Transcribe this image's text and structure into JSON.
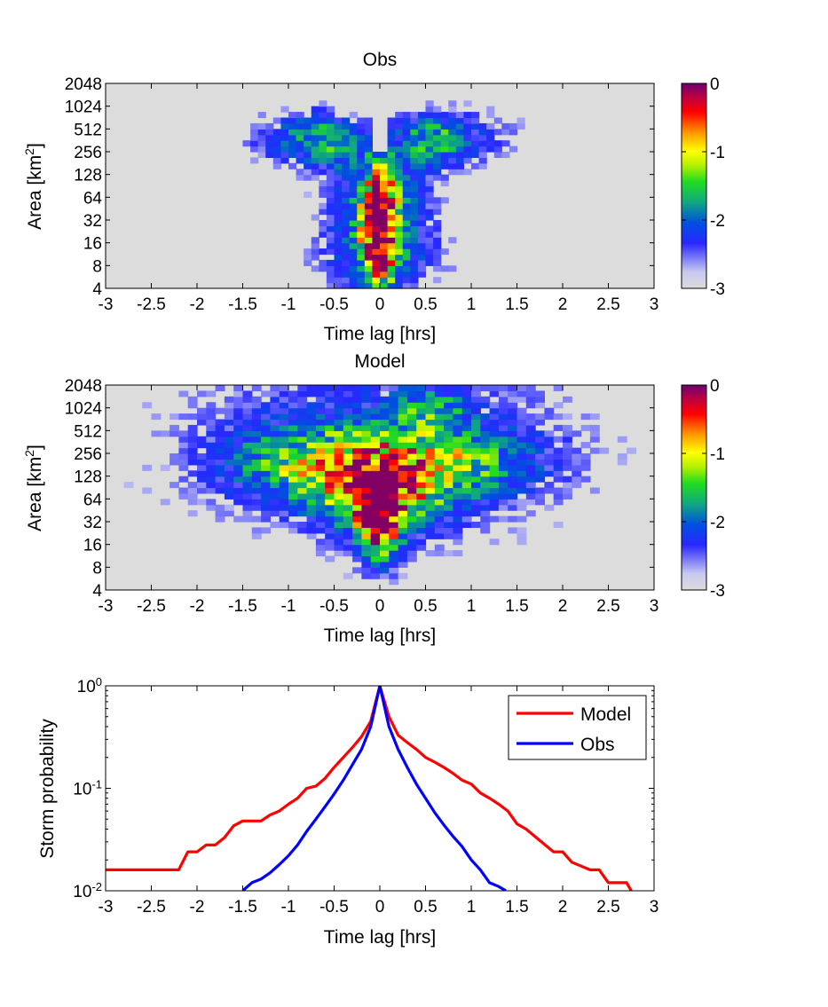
{
  "chart_data": [
    {
      "type": "heatmap",
      "title": "Obs",
      "xlabel": "Time lag [hrs]",
      "ylabel_main": "Area [km",
      "ylabel_sup": "2",
      "ylabel_tail": "]",
      "xlim": [
        -3,
        3
      ],
      "x_ticks": [
        "-3",
        "-2.5",
        "-2",
        "-1.5",
        "-1",
        "-0.5",
        "0",
        "0.5",
        "1",
        "1.5",
        "2",
        "2.5",
        "3"
      ],
      "y_ticks": [
        "4",
        "8",
        "16",
        "32",
        "64",
        "128",
        "256",
        "512",
        "1024",
        "2048"
      ],
      "y_ticks_log2": [
        2,
        3,
        4,
        5,
        6,
        7,
        8,
        9,
        10,
        11
      ],
      "colorbar": {
        "range": [
          -3,
          0
        ],
        "ticks": [
          "0",
          "-1",
          "-2",
          "-3"
        ],
        "colormap": "spectral (light gray at -3, blue, green, yellow, red, dark purple at 0)"
      },
      "background_value": -3,
      "cell_width_hrs": 0.0833,
      "blobs": [
        {
          "x": 0.0,
          "y": 4.6,
          "sx": 0.13,
          "sy": 1.8,
          "amp": 2.4
        },
        {
          "x": 0.0,
          "y": 5.8,
          "sx": 0.4,
          "sy": 1.6,
          "amp": 1.25
        },
        {
          "x": -0.6,
          "y": 8.6,
          "sx": 0.3,
          "sy": 0.9,
          "amp": 1.0
        },
        {
          "x": 0.55,
          "y": 8.6,
          "sx": 0.3,
          "sy": 0.9,
          "amp": 1.0
        },
        {
          "x": -1.1,
          "y": 8.6,
          "sx": 0.45,
          "sy": 1.0,
          "amp": 0.55
        },
        {
          "x": 1.1,
          "y": 8.6,
          "sx": 0.45,
          "sy": 1.0,
          "amp": 0.55
        },
        {
          "x": 0.0,
          "y": 3.2,
          "sx": 0.6,
          "sy": 1.2,
          "amp": 0.7
        }
      ],
      "notch": {
        "x": 0.0,
        "width": 0.08,
        "y_from": 8.0
      }
    },
    {
      "type": "heatmap",
      "title": "Model",
      "xlabel": "Time lag [hrs]",
      "ylabel_main": "Area [km",
      "ylabel_sup": "2",
      "ylabel_tail": "]",
      "xlim": [
        -3,
        3
      ],
      "x_ticks": [
        "-3",
        "-2.5",
        "-2",
        "-1.5",
        "-1",
        "-0.5",
        "0",
        "0.5",
        "1",
        "1.5",
        "2",
        "2.5",
        "3"
      ],
      "y_ticks": [
        "4",
        "8",
        "16",
        "32",
        "64",
        "128",
        "256",
        "512",
        "1024",
        "2048"
      ],
      "y_ticks_log2": [
        2,
        3,
        4,
        5,
        6,
        7,
        8,
        9,
        10,
        11
      ],
      "colorbar": {
        "range": [
          -3,
          0
        ],
        "ticks": [
          "0",
          "-1",
          "-2",
          "-3"
        ],
        "colormap": "spectral (light gray at -3, blue, green, yellow, red, dark purple at 0)"
      },
      "background_value": -3,
      "cell_width_hrs": 0.1,
      "blobs": [
        {
          "x": 0.0,
          "y": 5.0,
          "sx": 0.15,
          "sy": 1.3,
          "amp": 2.2
        },
        {
          "x": 0.0,
          "y": 6.2,
          "sx": 0.45,
          "sy": 1.2,
          "amp": 1.45
        },
        {
          "x": -0.7,
          "y": 7.6,
          "sx": 0.7,
          "sy": 1.1,
          "amp": 1.0
        },
        {
          "x": 0.7,
          "y": 7.6,
          "sx": 0.7,
          "sy": 1.1,
          "amp": 1.0
        },
        {
          "x": 0.55,
          "y": 10.0,
          "sx": 0.25,
          "sy": 0.6,
          "amp": 0.8
        },
        {
          "x": 0.0,
          "y": 8.5,
          "sx": 1.8,
          "sy": 3.5,
          "amp": 0.75
        }
      ],
      "notch": null
    },
    {
      "type": "line",
      "xlabel": "Time lag [hrs]",
      "ylabel": "Storm probability",
      "xlim": [
        -3,
        3
      ],
      "ylim": [
        0.01,
        1
      ],
      "y_scale": "log",
      "x_ticks": [
        "-3",
        "-2.5",
        "-2",
        "-1.5",
        "-1",
        "-0.5",
        "0",
        "0.5",
        "1",
        "1.5",
        "2",
        "2.5",
        "3"
      ],
      "y_ticks": [
        {
          "base": "10",
          "exp": "-2"
        },
        {
          "base": "10",
          "exp": "-1"
        },
        {
          "base": "10",
          "exp": "0"
        }
      ],
      "legend_placement": "top-right",
      "series": [
        {
          "name": "Model",
          "color": "#ff0000",
          "x": [
            -3.0,
            -2.2,
            -2.1,
            -2.0,
            -1.9,
            -1.8,
            -1.7,
            -1.6,
            -1.5,
            -1.3,
            -1.2,
            -1.1,
            -1.0,
            -0.9,
            -0.8,
            -0.7,
            -0.6,
            -0.5,
            -0.4,
            -0.3,
            -0.2,
            -0.1,
            0.0,
            0.1,
            0.2,
            0.3,
            0.4,
            0.5,
            0.6,
            0.7,
            0.8,
            0.9,
            1.0,
            1.1,
            1.2,
            1.3,
            1.4,
            1.5,
            1.6,
            1.9,
            2.0,
            2.1,
            2.3,
            2.4,
            2.5,
            2.7,
            2.75
          ],
          "y": [
            0.016,
            0.016,
            0.024,
            0.024,
            0.028,
            0.028,
            0.033,
            0.043,
            0.048,
            0.048,
            0.055,
            0.06,
            0.07,
            0.08,
            0.1,
            0.105,
            0.125,
            0.16,
            0.2,
            0.25,
            0.32,
            0.45,
            1.0,
            0.5,
            0.33,
            0.28,
            0.24,
            0.2,
            0.18,
            0.16,
            0.14,
            0.12,
            0.11,
            0.09,
            0.08,
            0.07,
            0.06,
            0.045,
            0.04,
            0.024,
            0.024,
            0.019,
            0.016,
            0.016,
            0.012,
            0.012,
            0.01
          ]
        },
        {
          "name": "Obs",
          "color": "#0000ff",
          "x": [
            -1.5,
            -1.4,
            -1.3,
            -1.2,
            -1.1,
            -1.0,
            -0.9,
            -0.8,
            -0.7,
            -0.6,
            -0.5,
            -0.4,
            -0.3,
            -0.2,
            -0.1,
            0.0,
            0.1,
            0.2,
            0.3,
            0.4,
            0.5,
            0.6,
            0.7,
            0.8,
            0.9,
            1.0,
            1.1,
            1.2,
            1.3,
            1.38
          ],
          "y": [
            0.01,
            0.012,
            0.013,
            0.015,
            0.018,
            0.022,
            0.028,
            0.038,
            0.05,
            0.066,
            0.088,
            0.12,
            0.17,
            0.24,
            0.4,
            1.0,
            0.4,
            0.24,
            0.16,
            0.11,
            0.08,
            0.058,
            0.044,
            0.034,
            0.027,
            0.02,
            0.016,
            0.012,
            0.011,
            0.01
          ]
        }
      ]
    }
  ]
}
